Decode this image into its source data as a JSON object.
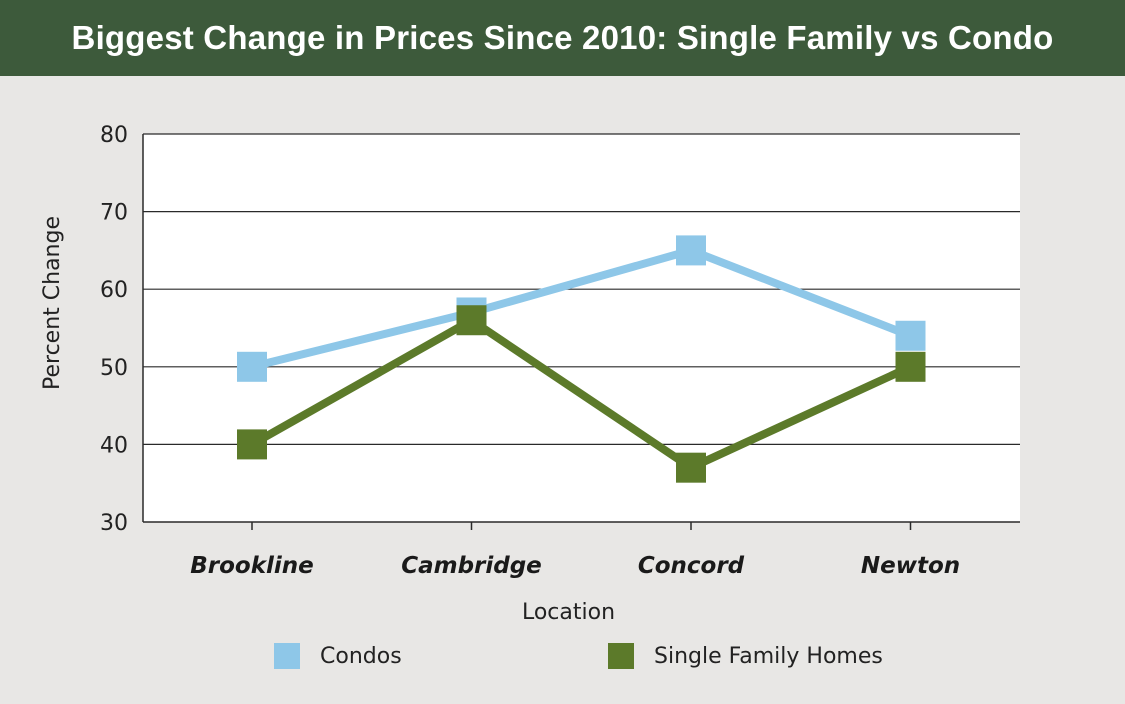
{
  "chart_data": {
    "type": "line",
    "title": "Biggest Change in Prices Since 2010: Single Family vs Condo",
    "xlabel": "Location",
    "ylabel": "Percent Change",
    "categories": [
      "Brookline",
      "Cambridge",
      "Concord",
      "Newton"
    ],
    "ylim": [
      30,
      80
    ],
    "yticks": [
      30,
      40,
      50,
      60,
      70,
      80
    ],
    "grid": true,
    "legend_position": "bottom",
    "series": [
      {
        "name": "Condos",
        "values": [
          50,
          57,
          65,
          54
        ],
        "color": "#8ec7e8"
      },
      {
        "name": "Single Family Homes",
        "values": [
          40,
          56,
          37,
          50
        ],
        "color": "#5c7a2a"
      }
    ]
  },
  "colors": {
    "header_background": "#3d5a3b",
    "page_background": "#e8e7e5",
    "plot_background": "#ffffff"
  }
}
